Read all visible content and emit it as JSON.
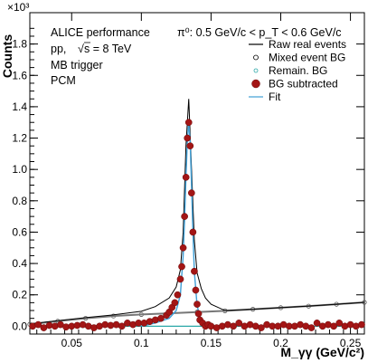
{
  "chart_data": {
    "type": "scatter",
    "title": "",
    "xlabel": "M_γγ (GeV/c²)",
    "ylabel": "Counts",
    "exponent_label": "×10³",
    "xlim": [
      0.02,
      0.26
    ],
    "ylim": [
      -0.05,
      2.0
    ],
    "x_ticks": [
      0.05,
      0.1,
      0.15,
      0.2,
      0.25
    ],
    "x_tick_labels": [
      "0.05",
      "0.1",
      "0.15",
      "0.2",
      "0.25"
    ],
    "y_ticks": [
      0,
      0.2,
      0.4,
      0.6,
      0.8,
      1.0,
      1.2,
      1.4,
      1.6,
      1.8
    ],
    "y_tick_labels": [
      "0.0",
      "0.2",
      "0.4",
      "0.6",
      "0.8",
      "1.0",
      "1.2",
      "1.4",
      "1.6",
      "1.8"
    ],
    "annotations": {
      "collaboration": "ALICE performance",
      "system_prefix": "pp, ",
      "energy_text": "s = 8 TeV",
      "trigger": "MB trigger",
      "method": "PCM",
      "pt_range": "π⁰: 0.5 GeV/c < p_T < 0.6 GeV/c"
    },
    "legend": {
      "placement": "top-right",
      "entries": [
        {
          "label": "Raw real events",
          "style": "line",
          "color": "#000000"
        },
        {
          "label": "Mixed event BG",
          "style": "open-circle",
          "color": "#000000"
        },
        {
          "label": "Remain. BG",
          "style": "open-circle-small",
          "color": "#2aa7a7"
        },
        {
          "label": "BG subtracted",
          "style": "filled-circle",
          "color": "#a31515"
        },
        {
          "label": "Fit",
          "style": "line",
          "color": "#3f9fd6"
        }
      ]
    },
    "series": [
      {
        "name": "Raw real events",
        "color": "#000000",
        "x": [
          0.02,
          0.04,
          0.06,
          0.08,
          0.1,
          0.11,
          0.12,
          0.125,
          0.128,
          0.13,
          0.132,
          0.134,
          0.136,
          0.138,
          0.14,
          0.143,
          0.146,
          0.15,
          0.16,
          0.18,
          0.2,
          0.22,
          0.24,
          0.26
        ],
        "values": [
          0.015,
          0.035,
          0.055,
          0.072,
          0.095,
          0.125,
          0.18,
          0.25,
          0.36,
          0.6,
          1.15,
          1.45,
          1.0,
          0.55,
          0.34,
          0.24,
          0.18,
          0.14,
          0.1,
          0.108,
          0.118,
          0.128,
          0.14,
          0.152
        ]
      },
      {
        "name": "Mixed event BG",
        "color": "#000000",
        "x": [
          0.02,
          0.04,
          0.06,
          0.08,
          0.1,
          0.12,
          0.14,
          0.16,
          0.18,
          0.2,
          0.22,
          0.24,
          0.26
        ],
        "values": [
          0.012,
          0.032,
          0.05,
          0.065,
          0.075,
          0.082,
          0.09,
          0.098,
          0.108,
          0.118,
          0.128,
          0.14,
          0.152
        ]
      },
      {
        "name": "Remain. BG",
        "color": "#2aa7a7",
        "x": [
          0.02,
          0.26
        ],
        "values": [
          0.0,
          0.0
        ]
      },
      {
        "name": "BG subtracted",
        "color": "#a31515",
        "x": [
          0.022,
          0.026,
          0.03,
          0.034,
          0.038,
          0.042,
          0.046,
          0.05,
          0.054,
          0.058,
          0.062,
          0.066,
          0.07,
          0.074,
          0.078,
          0.082,
          0.086,
          0.09,
          0.094,
          0.098,
          0.102,
          0.106,
          0.11,
          0.114,
          0.118,
          0.12,
          0.122,
          0.124,
          0.126,
          0.128,
          0.129,
          0.13,
          0.131,
          0.132,
          0.133,
          0.134,
          0.135,
          0.136,
          0.137,
          0.138,
          0.139,
          0.14,
          0.141,
          0.142,
          0.144,
          0.146,
          0.148,
          0.15,
          0.154,
          0.158,
          0.162,
          0.166,
          0.17,
          0.174,
          0.178,
          0.182,
          0.186,
          0.19,
          0.194,
          0.198,
          0.202,
          0.206,
          0.21,
          0.214,
          0.218,
          0.222,
          0.226,
          0.23,
          0.234,
          0.238,
          0.242,
          0.246,
          0.25,
          0.254,
          0.258
        ],
        "values": [
          0.0,
          0.01,
          -0.01,
          0.005,
          0.0,
          0.01,
          -0.005,
          0.0,
          0.005,
          0.01,
          0.0,
          -0.01,
          0.0,
          0.01,
          0.005,
          0.01,
          0.0,
          0.02,
          0.01,
          0.02,
          0.02,
          0.03,
          0.04,
          0.05,
          0.07,
          0.09,
          0.12,
          0.15,
          0.2,
          0.3,
          0.38,
          0.5,
          0.7,
          0.95,
          1.2,
          1.3,
          1.15,
          0.85,
          0.6,
          0.35,
          0.23,
          0.14,
          0.08,
          0.04,
          0.02,
          0.0,
          0.01,
          0.0,
          -0.01,
          0.0,
          0.01,
          0.0,
          0.02,
          0.0,
          0.01,
          0.0,
          -0.01,
          0.01,
          0.0,
          0.0,
          0.01,
          0.0,
          0.0,
          0.01,
          0.0,
          -0.01,
          0.02,
          0.0,
          0.01,
          0.0,
          0.02,
          0.0,
          0.01,
          0.0,
          0.01
        ]
      },
      {
        "name": "Fit",
        "color": "#3f9fd6",
        "x": [
          0.1,
          0.11,
          0.12,
          0.125,
          0.128,
          0.13,
          0.131,
          0.132,
          0.133,
          0.134,
          0.135,
          0.136,
          0.137,
          0.138,
          0.14,
          0.143,
          0.146,
          0.15,
          0.16
        ],
        "values": [
          0.0,
          0.02,
          0.05,
          0.1,
          0.2,
          0.45,
          0.68,
          0.95,
          1.18,
          1.3,
          1.18,
          0.9,
          0.6,
          0.35,
          0.13,
          0.03,
          0.01,
          0.0,
          0.0
        ]
      }
    ]
  }
}
